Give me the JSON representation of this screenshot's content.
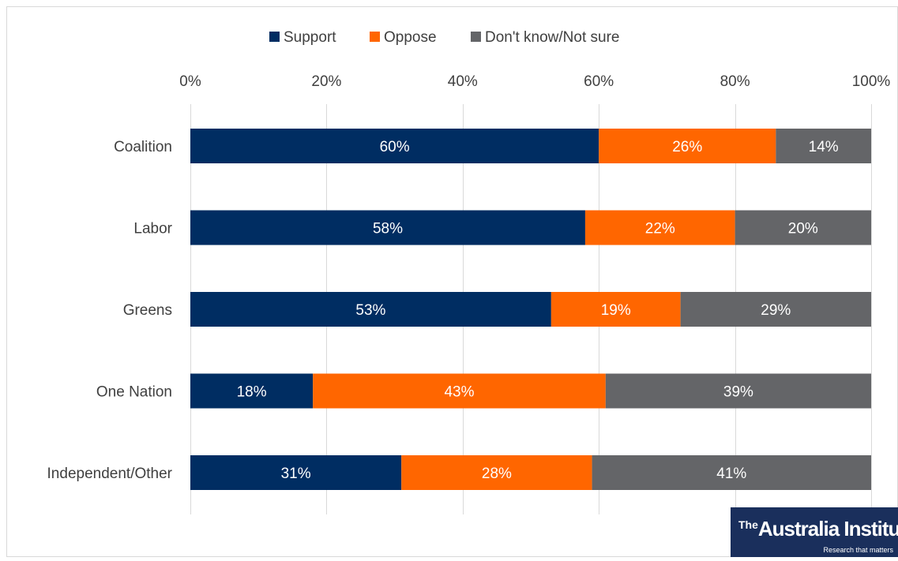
{
  "colors": {
    "support": "#002d62",
    "oppose": "#ff6600",
    "dontknow": "#646568",
    "grid": "#d9d9d9",
    "text": "#404040"
  },
  "logo": {
    "the": "The",
    "name": "Australia Institute",
    "tagline": "Research that matters"
  },
  "chart_data": {
    "type": "bar",
    "orientation": "horizontal",
    "stacked": true,
    "title": "",
    "xlabel": "",
    "ylabel": "",
    "xlim": [
      0,
      100
    ],
    "x_ticks": [
      "0%",
      "20%",
      "40%",
      "60%",
      "80%",
      "100%"
    ],
    "grid": true,
    "legend_position": "top",
    "categories": [
      "Coalition",
      "Labor",
      "Greens",
      "One Nation",
      "Independent/Other"
    ],
    "series": [
      {
        "name": "Support",
        "values": [
          60,
          58,
          53,
          18,
          31
        ],
        "labels": [
          "60%",
          "58%",
          "53%",
          "18%",
          "31%"
        ]
      },
      {
        "name": "Oppose",
        "values": [
          26,
          22,
          19,
          43,
          28
        ],
        "labels": [
          "26%",
          "22%",
          "19%",
          "43%",
          "28%"
        ]
      },
      {
        "name": "Don't know/Not sure",
        "values": [
          14,
          20,
          29,
          39,
          41
        ],
        "labels": [
          "14%",
          "20%",
          "29%",
          "39%",
          "41%"
        ]
      }
    ]
  }
}
